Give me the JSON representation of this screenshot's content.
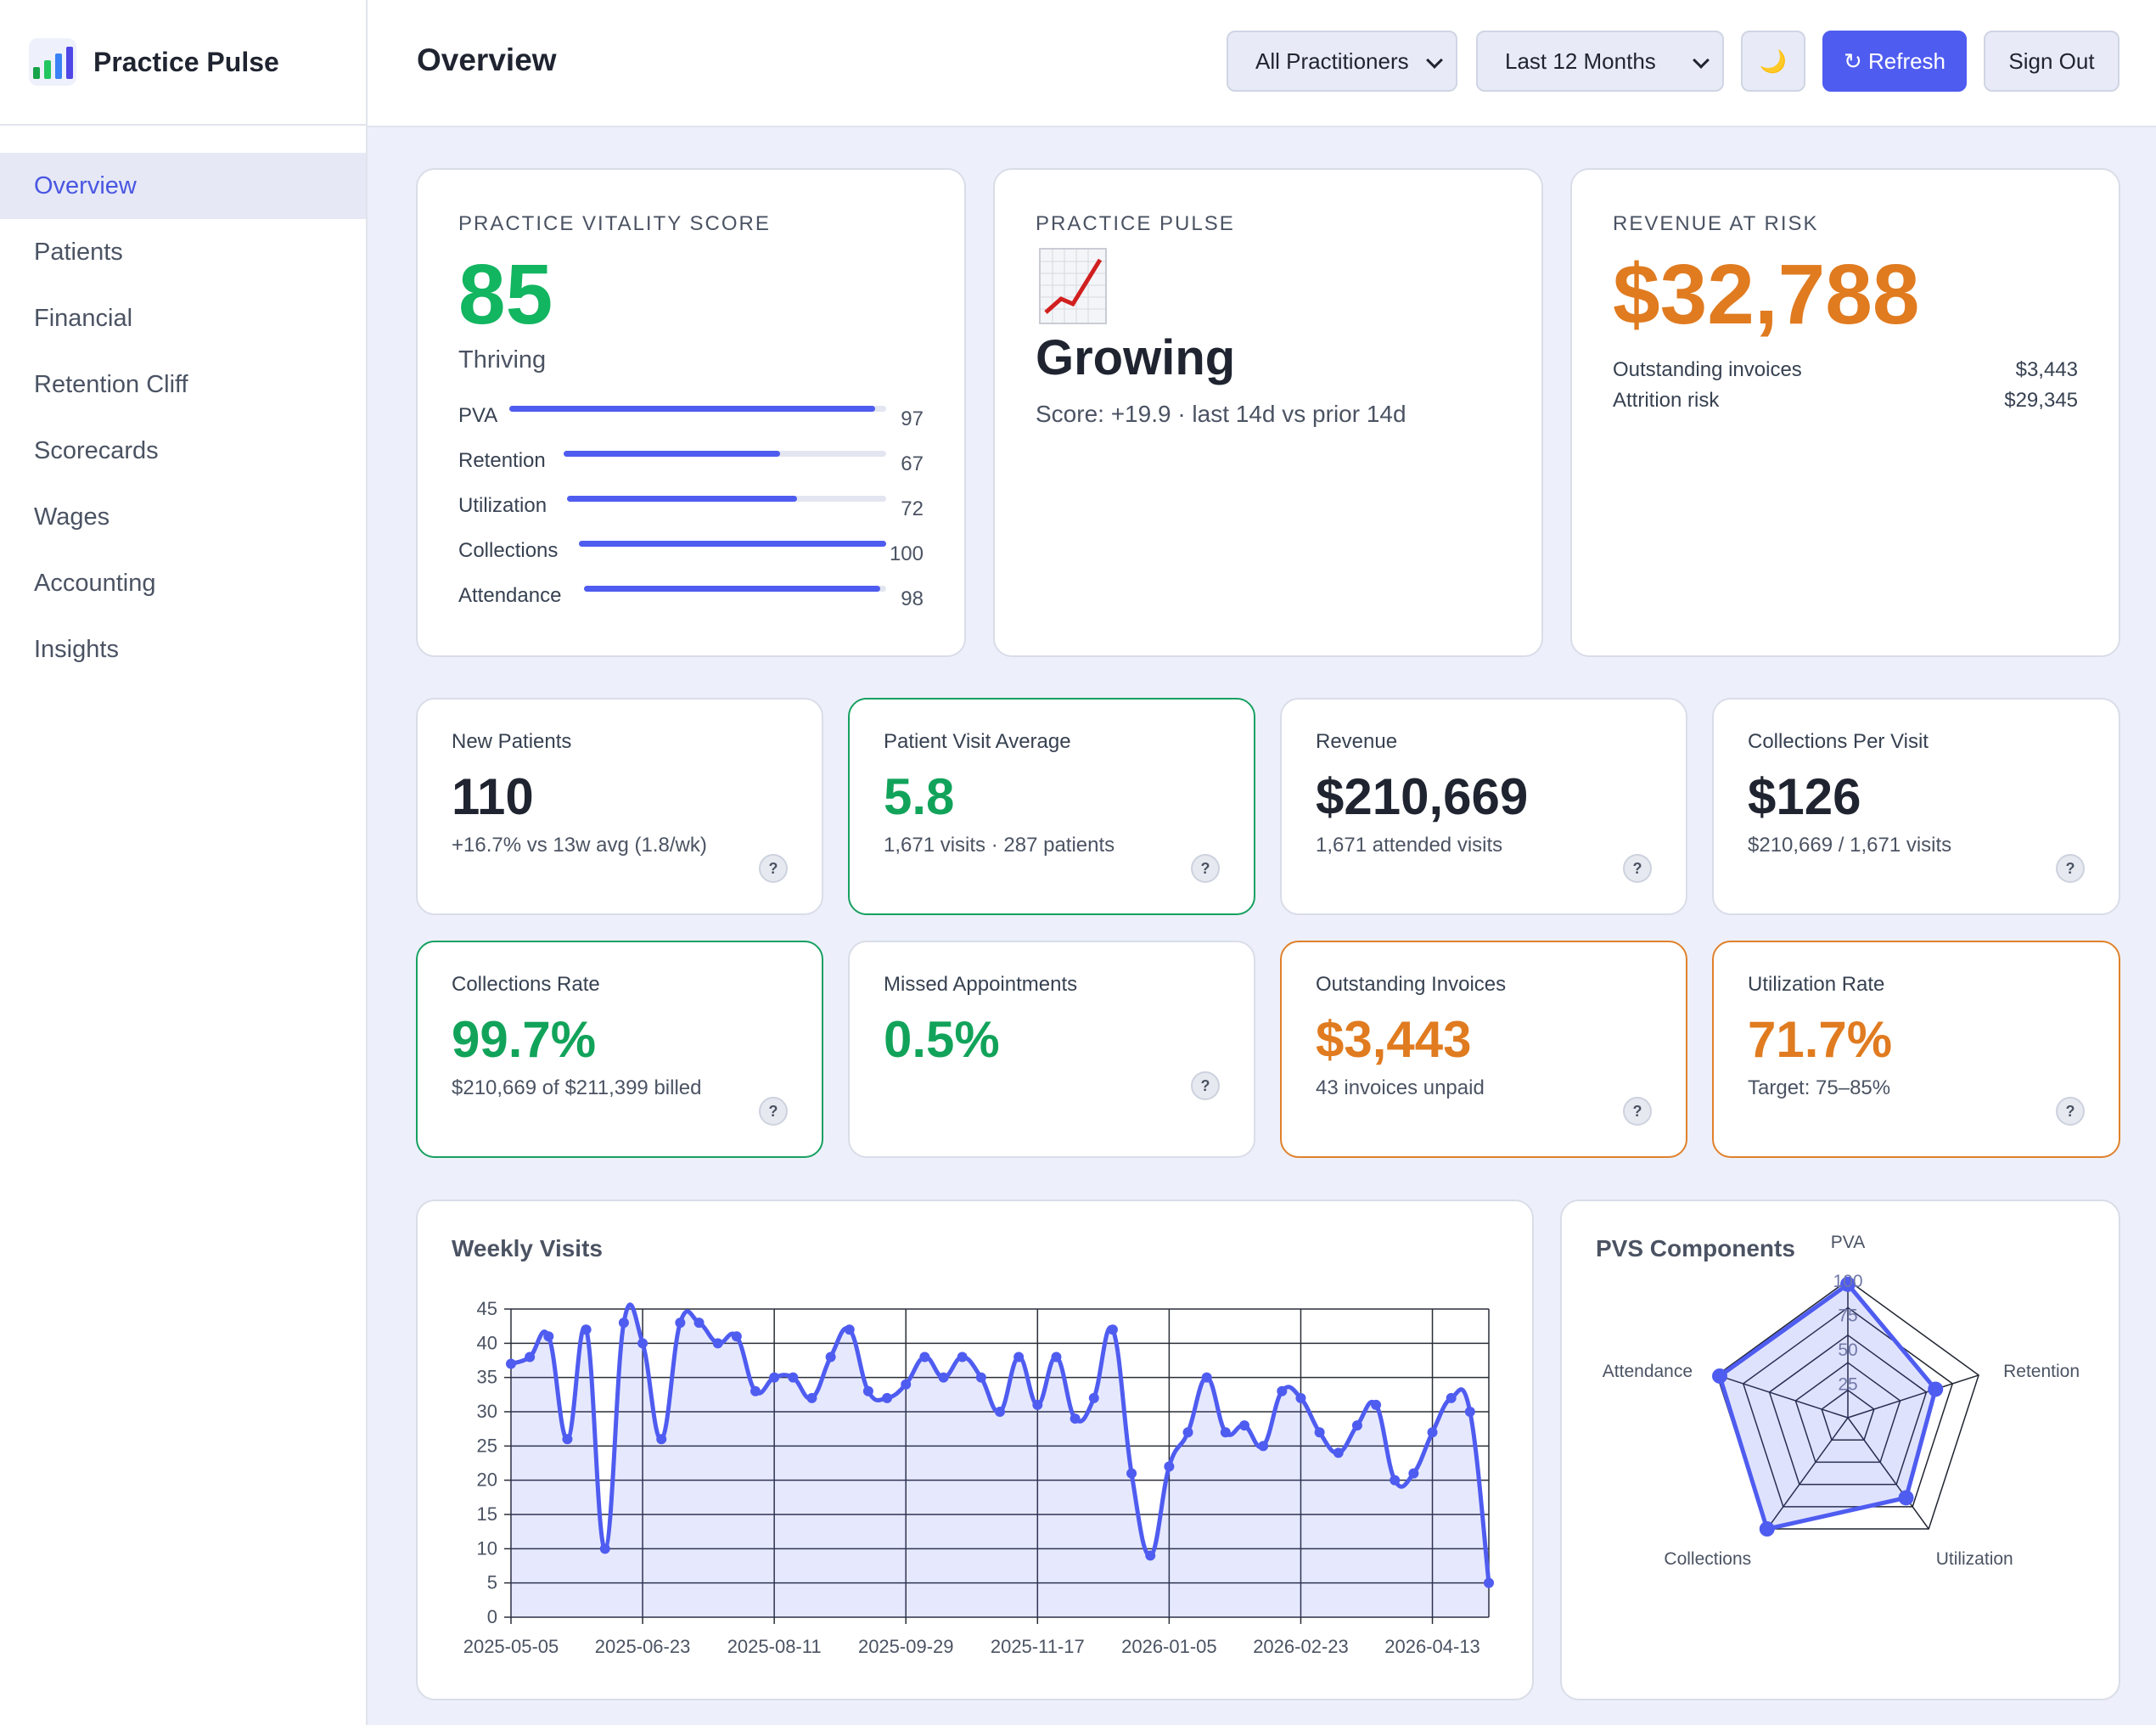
{
  "brand": {
    "name": "Practice Pulse",
    "icon": "bar-chart-icon"
  },
  "sidebar": {
    "items": [
      {
        "label": "Overview",
        "active": true
      },
      {
        "label": "Patients"
      },
      {
        "label": "Financial"
      },
      {
        "label": "Retention Cliff"
      },
      {
        "label": "Scorecards"
      },
      {
        "label": "Wages"
      },
      {
        "label": "Accounting"
      },
      {
        "label": "Insights"
      }
    ]
  },
  "header": {
    "title": "Overview",
    "practitioner_filter": "All Practitioners",
    "period_filter": "Last 12 Months",
    "theme_icon": "🌙",
    "refresh_label": "↻ Refresh",
    "signout_label": "Sign Out"
  },
  "vitality": {
    "caption": "PRACTICE VITALITY SCORE",
    "score": "85",
    "state": "Thriving",
    "components": [
      {
        "label": "PVA",
        "value": "97",
        "pct": 97
      },
      {
        "label": "Retention",
        "value": "67",
        "pct": 67
      },
      {
        "label": "Utilization",
        "value": "72",
        "pct": 72
      },
      {
        "label": "Collections",
        "value": "100",
        "pct": 100
      },
      {
        "label": "Attendance",
        "value": "98",
        "pct": 98
      }
    ]
  },
  "pulse": {
    "caption": "PRACTICE PULSE",
    "icon": "chart-increasing-icon",
    "state": "Growing",
    "detail": "Score: +19.9 · last 14d vs prior 14d"
  },
  "risk": {
    "caption": "REVENUE AT RISK",
    "amount": "$32,788",
    "rows": [
      {
        "label": "Outstanding invoices",
        "value": "$3,443"
      },
      {
        "label": "Attrition risk",
        "value": "$29,345"
      }
    ]
  },
  "kpis": [
    {
      "title": "New Patients",
      "value": "110",
      "sub": "+16.7% vs 13w avg (1.8/wk)",
      "tone": "default"
    },
    {
      "title": "Patient Visit Average",
      "value": "5.8",
      "sub": "1,671 visits · 287 patients",
      "tone": "green"
    },
    {
      "title": "Revenue",
      "value": "$210,669",
      "sub": "1,671 attended visits",
      "tone": "default"
    },
    {
      "title": "Collections Per Visit",
      "value": "$126",
      "sub": "$210,669 / 1,671 visits",
      "tone": "default"
    },
    {
      "title": "Collections Rate",
      "value": "99.7%",
      "sub": "$210,669 of $211,399 billed",
      "tone": "green"
    },
    {
      "title": "Missed Appointments",
      "value": "0.5%",
      "sub": "",
      "tone": "green-text"
    },
    {
      "title": "Outstanding Invoices",
      "value": "$3,443",
      "sub": "43 invoices unpaid",
      "tone": "orange"
    },
    {
      "title": "Utilization Rate",
      "value": "71.7%",
      "sub": "Target: 75–85%",
      "tone": "orange"
    }
  ],
  "help_label": "?",
  "colors": {
    "accent": "#4f5cf0",
    "green": "#12a35a",
    "orange": "#e07b20"
  },
  "chart_data": [
    {
      "type": "area",
      "title": "Weekly Visits",
      "ylim": [
        0,
        45
      ],
      "yticks": [
        0,
        5,
        10,
        15,
        20,
        25,
        30,
        35,
        40,
        45
      ],
      "xticks": [
        "2025-05-05",
        "2025-06-23",
        "2025-08-11",
        "2025-09-29",
        "2025-11-17",
        "2026-01-05",
        "2026-02-23",
        "2026-04-13"
      ],
      "grid": true,
      "series": [
        {
          "values": [
            37,
            38,
            41,
            26,
            42,
            10,
            43,
            40,
            26,
            43,
            43,
            40,
            41,
            33,
            35,
            35,
            32,
            38,
            42,
            33,
            32,
            34,
            38,
            35,
            38,
            35,
            30,
            38,
            31,
            38,
            29,
            32,
            42,
            21,
            9,
            22,
            27,
            35,
            27,
            28,
            25,
            33,
            32,
            27,
            24,
            28,
            31,
            20,
            21,
            27,
            32,
            30,
            5
          ]
        }
      ]
    },
    {
      "type": "radar",
      "title": "PVS Components",
      "categories": [
        "PVA",
        "Retention",
        "Utilization",
        "Collections",
        "Attendance"
      ],
      "values": [
        97,
        67,
        72,
        100,
        98
      ],
      "rticks": [
        25,
        50,
        75,
        100
      ],
      "range": [
        0,
        100
      ]
    }
  ]
}
